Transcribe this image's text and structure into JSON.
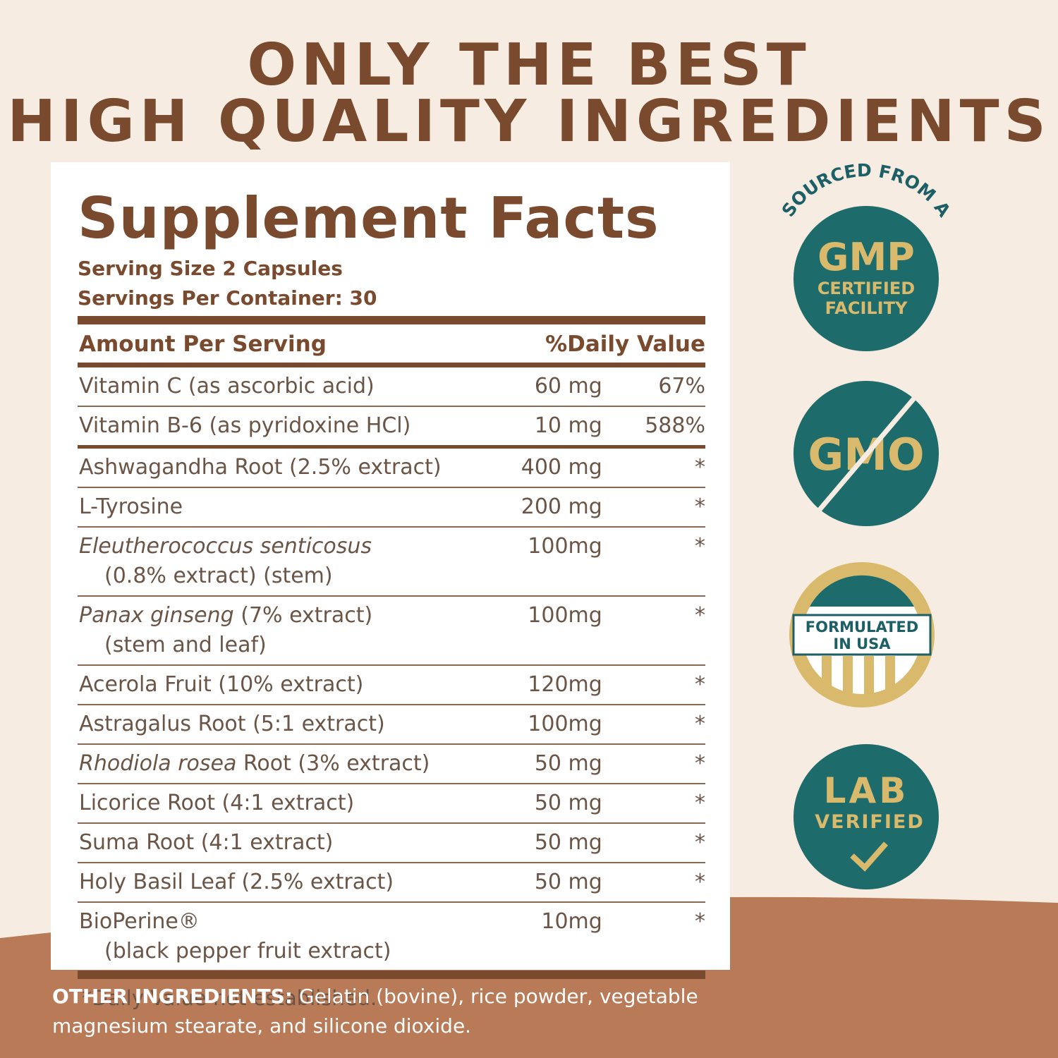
{
  "headline": [
    "ONLY THE BEST",
    "HIGH QUALITY INGREDIENTS"
  ],
  "facts": {
    "title": "Supplement Facts",
    "serving_size": "Serving Size 2 Capsules",
    "servings": "Servings Per Container: 30",
    "amount_header": "Amount Per Serving",
    "dv_header": "%Daily Value",
    "vitamins": [
      {
        "name": "Vitamin C (as ascorbic acid)",
        "amount": "60 mg",
        "dv": "67%"
      },
      {
        "name": "Vitamin B-6 (as pyridoxine HCl)",
        "amount": "10 mg",
        "dv": "588%"
      }
    ],
    "botanicals": [
      {
        "name": "Ashwagandha Root (2.5% extract)",
        "amount": "400 mg",
        "dv": "*"
      },
      {
        "name": "L-Tyrosine",
        "amount": "200 mg",
        "dv": "*"
      },
      {
        "italic": "Eleutherococcus senticosus",
        "sub": "(0.8% extract) (stem)",
        "amount": "100mg",
        "dv": "*"
      },
      {
        "italic": "Panax ginseng",
        "name": "(7% extract)",
        "sub": "(stem and leaf)",
        "amount": "100mg",
        "dv": "*"
      },
      {
        "name": "Acerola Fruit (10% extract)",
        "amount": "120mg",
        "dv": "*"
      },
      {
        "name": "Astragalus Root (5:1 extract)",
        "amount": "100mg",
        "dv": "*"
      },
      {
        "italic": "Rhodiola rosea",
        "name": "Root (3% extract)",
        "amount": "50 mg",
        "dv": "*"
      },
      {
        "name": "Licorice Root (4:1 extract)",
        "amount": "50 mg",
        "dv": "*"
      },
      {
        "name": "Suma Root (4:1 extract)",
        "amount": "50 mg",
        "dv": "*"
      },
      {
        "name": "Holy Basil Leaf (2.5% extract)",
        "amount": "50 mg",
        "dv": "*"
      },
      {
        "name": "BioPerine®",
        "sub": "(black pepper fruit extract)",
        "amount": "10mg",
        "dv": "*"
      }
    ],
    "footnote": "*Daily Value not established."
  },
  "other": {
    "label": "OTHER INGREDIENTS:",
    "text": "Gelatin (bovine), rice powder, vegetable magnesium stearate, and silicone dioxide."
  },
  "badges": {
    "gmp": {
      "arc": "SOURCED FROM A",
      "big": "GMP",
      "lines": [
        "CERTIFIED",
        "FACILITY"
      ]
    },
    "gmo": {
      "big": "GMO"
    },
    "usa": {
      "lines": [
        "FORMULATED",
        "IN USA"
      ]
    },
    "lab": {
      "big": "LAB",
      "small": "VERIFIED"
    }
  }
}
